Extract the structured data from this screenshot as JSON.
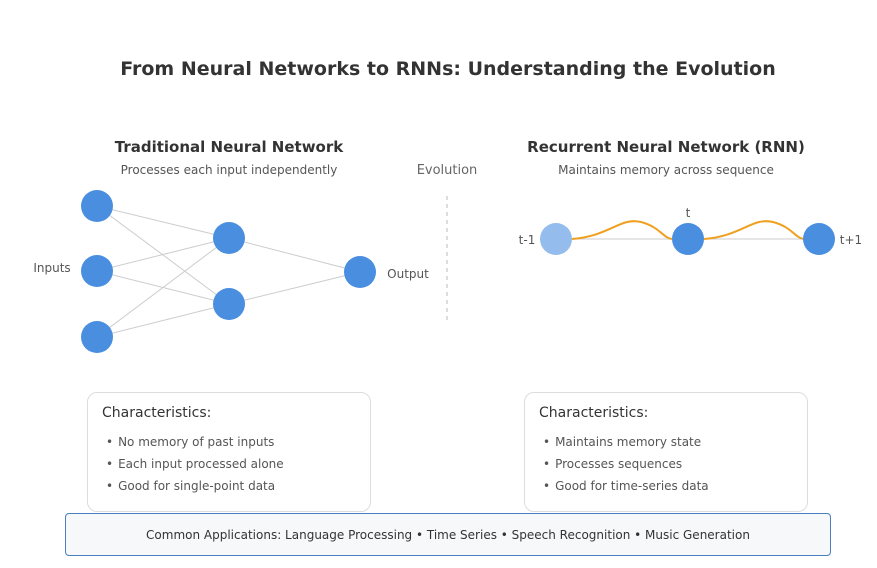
{
  "title": "From Neural Networks to RNNs: Understanding the Evolution",
  "traditional": {
    "heading": "Traditional Neural Network",
    "subheading": "Processes each input independently",
    "inputs_label": "Inputs",
    "output_label": "Output"
  },
  "evolution_label": "Evolution",
  "rnn": {
    "heading": "Recurrent Neural Network (RNN)",
    "subheading": "Maintains memory across sequence",
    "step_prev": "t-1",
    "step_current": "t",
    "step_next": "t+1"
  },
  "traditional_card": {
    "title": "Characteristics:",
    "items": [
      "No memory of past inputs",
      "Each input processed alone",
      "Good for single-point data"
    ]
  },
  "rnn_card": {
    "title": "Characteristics:",
    "items": [
      "Maintains memory state",
      "Processes sequences",
      "Good for time-series data"
    ]
  },
  "applications": "Common Applications: Language Processing • Time Series • Speech Recognition • Music Generation",
  "colors": {
    "node": "#4a8ee0",
    "node_faded": "#94bcec",
    "recurrent_curve": "#f0a020",
    "connection": "#cccccc",
    "border_accent": "#4a7fc1"
  }
}
